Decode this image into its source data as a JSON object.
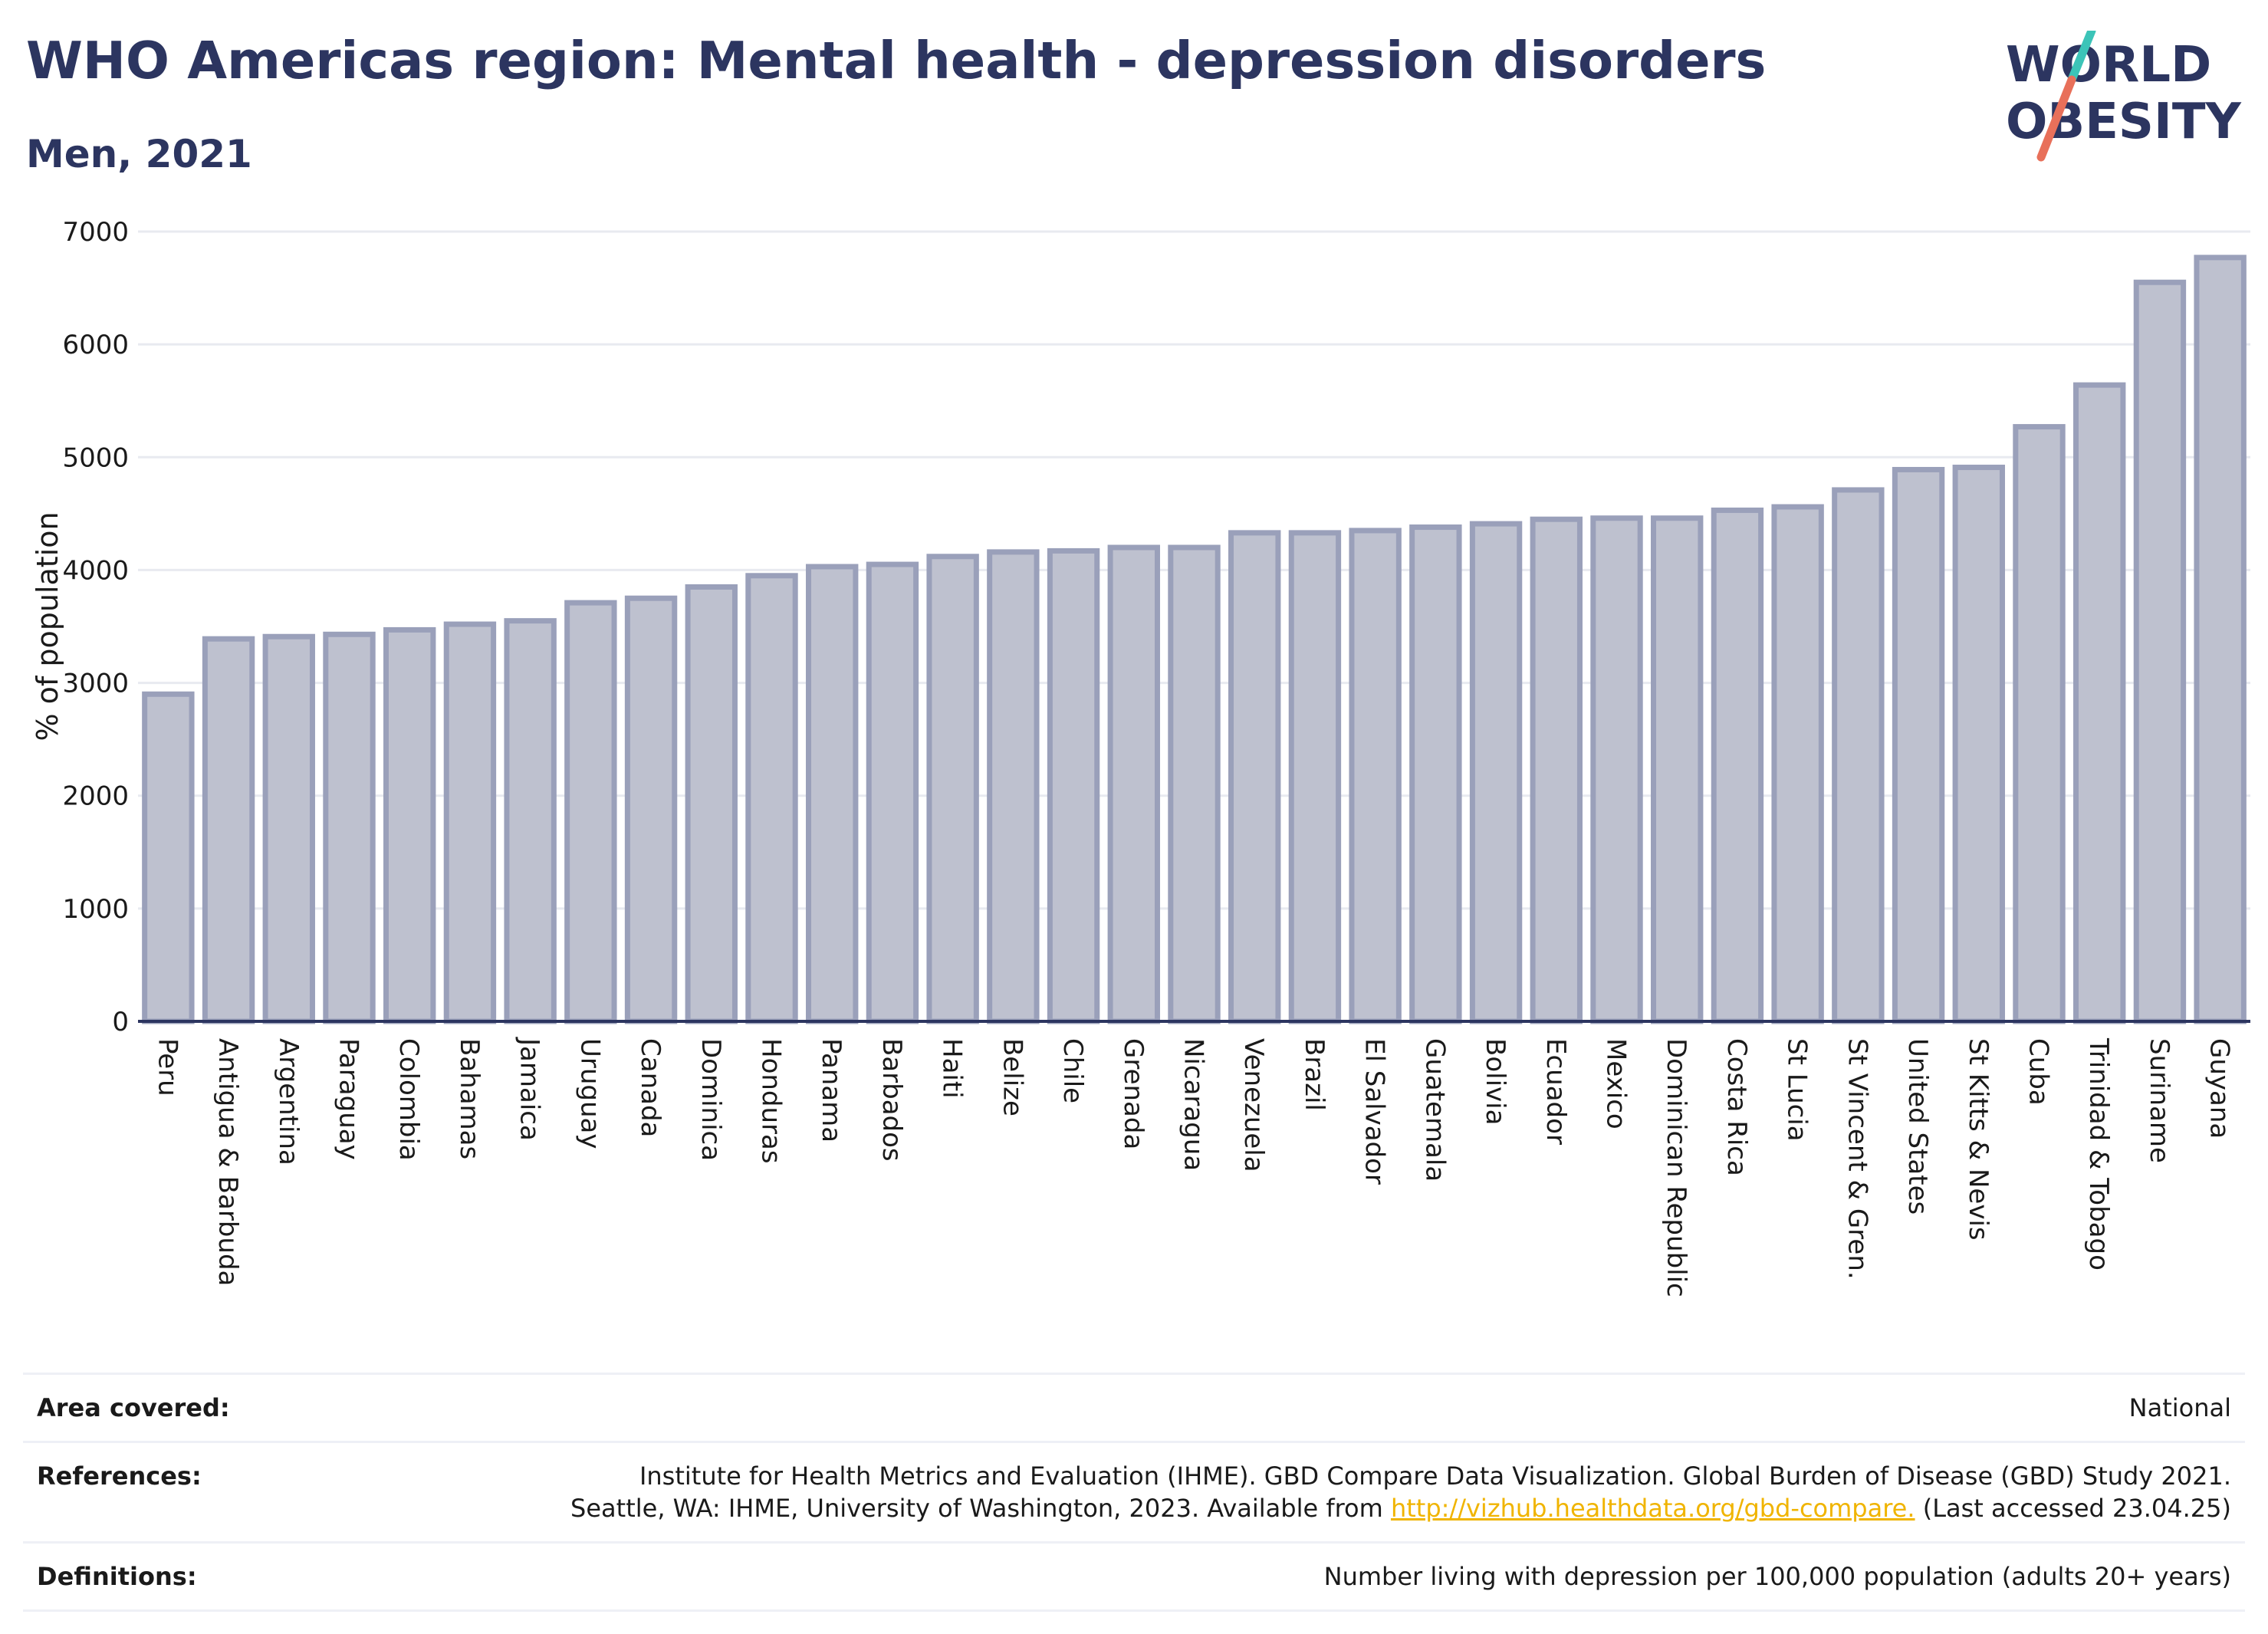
{
  "header": {
    "title": "WHO Americas region: Mental health - depression disorders",
    "subtitle": "Men, 2021"
  },
  "logo": {
    "line1": "WORLD",
    "line2": "OBESITY",
    "colors": {
      "text": "#2c3560",
      "slash_top": "#3cc4b8",
      "slash_bottom": "#e8705a"
    }
  },
  "chart_data": {
    "type": "bar",
    "title": "WHO Americas region: Mental health - depression disorders",
    "subtitle": "Men, 2021",
    "xlabel": "",
    "ylabel": "% of population",
    "ylim": [
      0,
      7000
    ],
    "yticks": [
      0,
      1000,
      2000,
      3000,
      4000,
      5000,
      6000,
      7000
    ],
    "grid": true,
    "categories": [
      "Peru",
      "Antigua & Barbuda",
      "Argentina",
      "Paraguay",
      "Colombia",
      "Bahamas",
      "Jamaica",
      "Uruguay",
      "Canada",
      "Dominica",
      "Honduras",
      "Panama",
      "Barbados",
      "Haiti",
      "Belize",
      "Chile",
      "Grenada",
      "Nicaragua",
      "Venezuela",
      "Brazil",
      "El Salvador",
      "Guatemala",
      "Bolivia",
      "Ecuador",
      "Mexico",
      "Dominican Republic",
      "Costa Rica",
      "St Lucia",
      "St Vincent & Gren.",
      "United States",
      "St Kitts & Nevis",
      "Cuba",
      "Trinidad & Tobago",
      "Suriname",
      "Guyana"
    ],
    "values": [
      2900,
      3390,
      3410,
      3430,
      3470,
      3520,
      3550,
      3710,
      3750,
      3850,
      3950,
      4030,
      4050,
      4120,
      4160,
      4170,
      4200,
      4200,
      4330,
      4330,
      4350,
      4380,
      4410,
      4450,
      4460,
      4460,
      4530,
      4560,
      4710,
      4890,
      4910,
      5270,
      5640,
      6550,
      6770
    ],
    "colors": {
      "bar_fill": "#bec1cf",
      "bar_stroke": "#9aa0ba",
      "axis": "#2c3560",
      "grid": "#e8eaf0"
    }
  },
  "footer": {
    "area_covered": {
      "label": "Area covered:",
      "value": "National"
    },
    "references": {
      "label": "References:",
      "line1": "Institute for Health Metrics and Evaluation (IHME). GBD Compare Data Visualization. Global Burden of Disease (GBD) Study 2021.",
      "line2_prefix": "Seattle, WA: IHME, University of Washington, 2023. Available from ",
      "link": "http://vizhub.healthdata.org/gbd-compare.",
      "line2_suffix": " (Last accessed 23.04.25)"
    },
    "definitions": {
      "label": "Definitions:",
      "value": "Number living with depression per 100,000 population (adults 20+ years)"
    }
  }
}
